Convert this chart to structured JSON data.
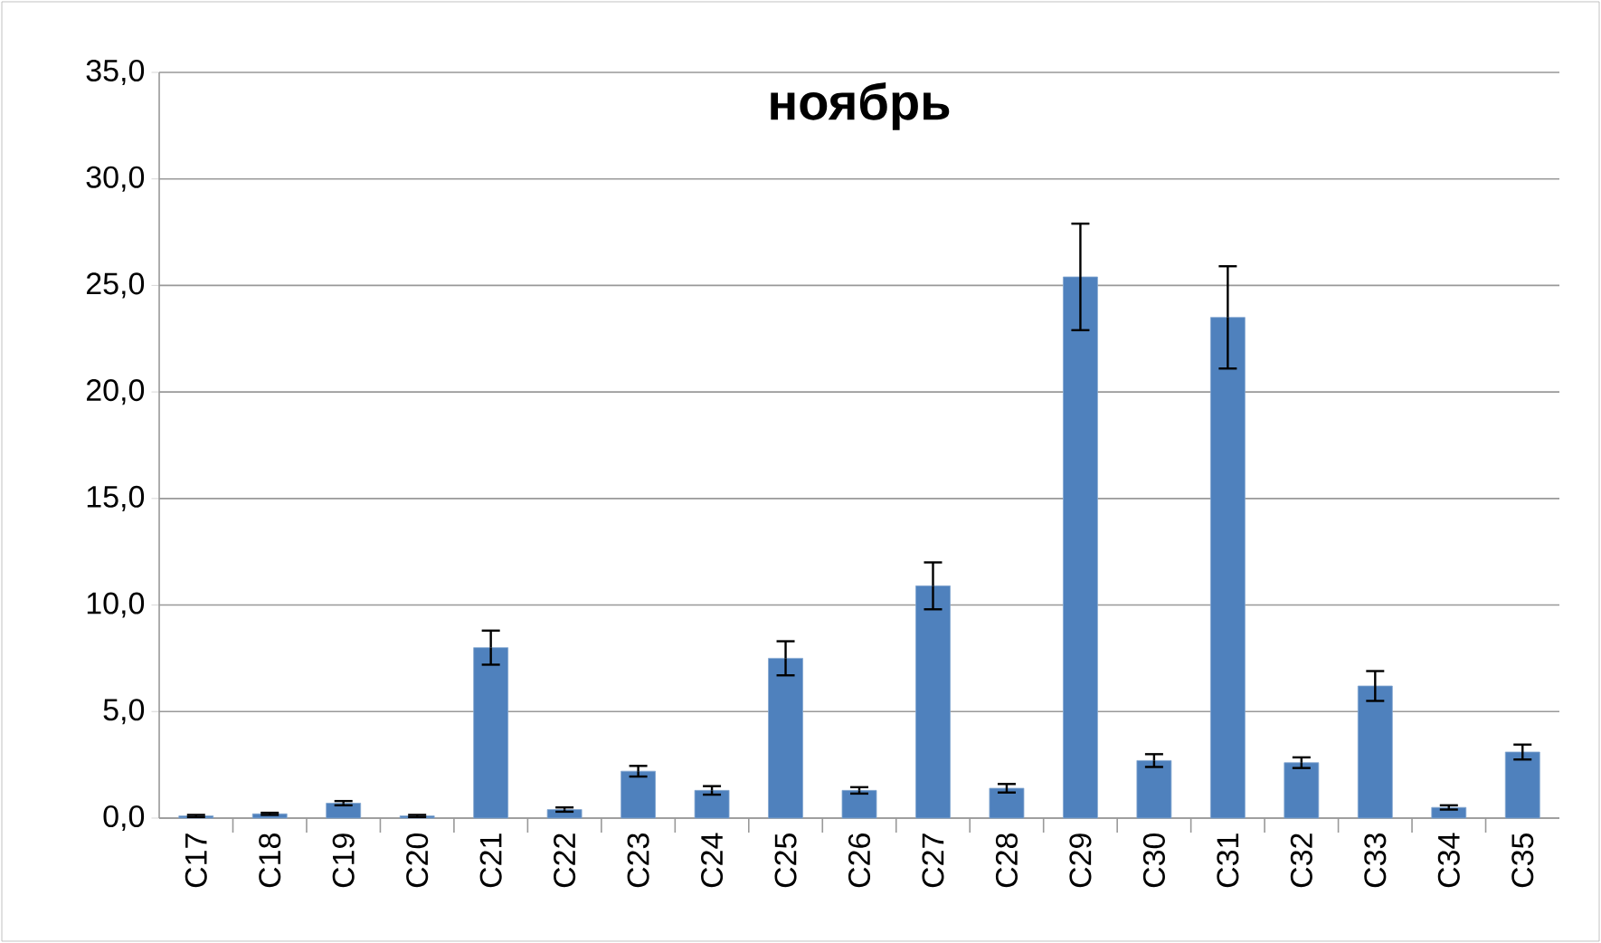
{
  "chart_data": {
    "type": "bar",
    "title": "ноябрь",
    "categories": [
      "C17",
      "C18",
      "C19",
      "C20",
      "C21",
      "C22",
      "C23",
      "C24",
      "C25",
      "C26",
      "C27",
      "C28",
      "C29",
      "C30",
      "C31",
      "C32",
      "C33",
      "C34",
      "C35"
    ],
    "values": [
      0.1,
      0.2,
      0.7,
      0.1,
      8.0,
      0.4,
      2.2,
      1.3,
      7.5,
      1.3,
      10.9,
      1.4,
      25.4,
      2.7,
      23.5,
      2.6,
      6.2,
      0.5,
      3.1
    ],
    "errors": [
      0.05,
      0.05,
      0.1,
      0.05,
      0.8,
      0.1,
      0.25,
      0.2,
      0.8,
      0.15,
      1.1,
      0.2,
      2.5,
      0.3,
      2.4,
      0.25,
      0.7,
      0.1,
      0.35
    ],
    "color": "#4f81bd",
    "ylim": [
      0,
      35
    ],
    "yticks": [
      {
        "value": 0,
        "label": "0,0"
      },
      {
        "value": 5,
        "label": "5,0"
      },
      {
        "value": 10,
        "label": "10,0"
      },
      {
        "value": 15,
        "label": "15,0"
      },
      {
        "value": 20,
        "label": "20,0"
      },
      {
        "value": 25,
        "label": "25,0"
      },
      {
        "value": 30,
        "label": "30,0"
      },
      {
        "value": 35,
        "label": "35,0"
      }
    ],
    "grid": "y"
  }
}
